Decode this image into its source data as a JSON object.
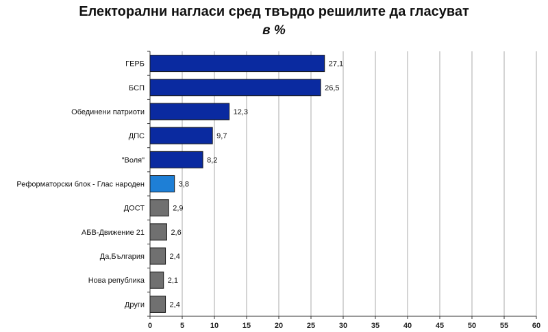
{
  "chart_data": {
    "type": "bar",
    "orientation": "horizontal",
    "title": "Електорални нагласи сред твърдо решилите да гласуват",
    "subtitle": "в %",
    "categories": [
      "ГЕРБ",
      "БСП",
      "Обединени патриоти",
      "ДПС",
      "\"Воля\"",
      "Реформаторски блок - Глас народен",
      "ДОСТ",
      "АБВ-Движение 21",
      "Да,България",
      "Нова република",
      "Други"
    ],
    "values": [
      27.1,
      26.5,
      12.3,
      9.7,
      8.2,
      3.8,
      2.9,
      2.6,
      2.4,
      2.1,
      2.4
    ],
    "value_labels": [
      "27,1",
      "26,5",
      "12,3",
      "9,7",
      "8,2",
      "3,8",
      "2,9",
      "2,6",
      "2,4",
      "2,1",
      "2,4"
    ],
    "bar_colors": [
      "#0a2aa0",
      "#0a2aa0",
      "#0a2aa0",
      "#0a2aa0",
      "#0a2aa0",
      "#1e7fd6",
      "#707070",
      "#707070",
      "#707070",
      "#707070",
      "#707070"
    ],
    "xlim": [
      0,
      60
    ],
    "xticks": [
      0,
      5,
      10,
      15,
      20,
      25,
      30,
      35,
      40,
      45,
      50,
      55,
      60
    ],
    "grid": true,
    "legend": "none"
  }
}
